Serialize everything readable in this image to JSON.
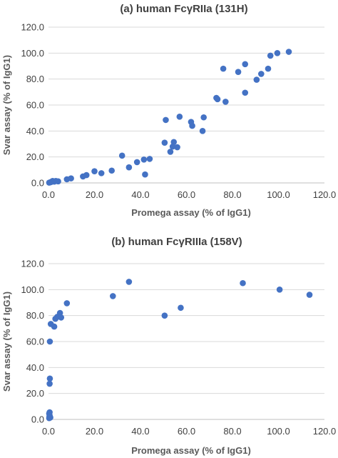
{
  "chart_data": [
    {
      "type": "scatter",
      "title": "(a) human FcγRIIa (131H)",
      "xlabel": "Promega assay (% of IgG1)",
      "ylabel": "Svar assay (% of IgG1)",
      "xlim": [
        0,
        120
      ],
      "ylim": [
        0,
        120
      ],
      "xticks": [
        "0.0",
        "20.0",
        "40.0",
        "60.0",
        "80.0",
        "100.0",
        "120.0"
      ],
      "yticks": [
        "0.0",
        "20.0",
        "40.0",
        "60.0",
        "80.0",
        "100.0",
        "120.0"
      ],
      "grid": "horizontal",
      "color": "#4472c4",
      "points": [
        [
          0.3,
          0.2
        ],
        [
          0.8,
          0.5
        ],
        [
          1.2,
          0.8
        ],
        [
          1.8,
          1.5
        ],
        [
          2.5,
          1.0
        ],
        [
          3.2,
          1.5
        ],
        [
          4.2,
          1.2
        ],
        [
          8.0,
          2.8
        ],
        [
          9.8,
          3.5
        ],
        [
          15.0,
          5.0
        ],
        [
          16.5,
          6.0
        ],
        [
          20.0,
          9.0
        ],
        [
          23.0,
          7.5
        ],
        [
          27.5,
          9.5
        ],
        [
          32.0,
          21.0
        ],
        [
          35.0,
          12.0
        ],
        [
          38.5,
          16.0
        ],
        [
          41.5,
          18.0
        ],
        [
          42.0,
          6.5
        ],
        [
          44.0,
          18.5
        ],
        [
          50.5,
          31.0
        ],
        [
          51.0,
          48.5
        ],
        [
          53.0,
          24.0
        ],
        [
          54.0,
          28.0
        ],
        [
          54.5,
          31.5
        ],
        [
          56.0,
          27.5
        ],
        [
          57.0,
          51.0
        ],
        [
          62.0,
          47.0
        ],
        [
          62.5,
          44.0
        ],
        [
          67.0,
          40.0
        ],
        [
          67.5,
          50.5
        ],
        [
          73.0,
          65.5
        ],
        [
          73.5,
          64.5
        ],
        [
          76.0,
          88.0
        ],
        [
          77.0,
          62.5
        ],
        [
          82.5,
          85.5
        ],
        [
          85.5,
          91.5
        ],
        [
          85.5,
          69.5
        ],
        [
          90.5,
          79.5
        ],
        [
          92.5,
          84.0
        ],
        [
          95.5,
          88.0
        ],
        [
          96.5,
          98.0
        ],
        [
          99.5,
          100.0
        ],
        [
          104.5,
          101.0
        ]
      ]
    },
    {
      "type": "scatter",
      "title": "(b) human FcγRIIIa (158V)",
      "xlabel": "Promega assay (% of IgG1)",
      "ylabel": "Svar assay (% of IgG1)",
      "xlim": [
        0,
        120
      ],
      "ylim": [
        0,
        120
      ],
      "xticks": [
        "0.0",
        "20.0",
        "40.0",
        "60.0",
        "80.0",
        "100.0",
        "120.0"
      ],
      "yticks": [
        "0.0",
        "20.0",
        "40.0",
        "60.0",
        "80.0",
        "100.0",
        "120.0"
      ],
      "grid": "horizontal",
      "color": "#4472c4",
      "points": [
        [
          0.3,
          1.0
        ],
        [
          0.4,
          2.0
        ],
        [
          0.5,
          3.0
        ],
        [
          0.3,
          4.5
        ],
        [
          0.5,
          5.5
        ],
        [
          0.8,
          1.5
        ],
        [
          0.5,
          27.5
        ],
        [
          0.6,
          31.5
        ],
        [
          0.6,
          60.0
        ],
        [
          1.0,
          73.5
        ],
        [
          2.5,
          71.5
        ],
        [
          3.0,
          77.5
        ],
        [
          3.8,
          79.0
        ],
        [
          5.0,
          82.0
        ],
        [
          5.5,
          78.5
        ],
        [
          8.0,
          89.5
        ],
        [
          28.0,
          95.0
        ],
        [
          35.0,
          106.0
        ],
        [
          50.5,
          80.0
        ],
        [
          57.5,
          86.0
        ],
        [
          84.5,
          105.0
        ],
        [
          100.5,
          100.0
        ],
        [
          113.5,
          96.0
        ]
      ]
    }
  ]
}
